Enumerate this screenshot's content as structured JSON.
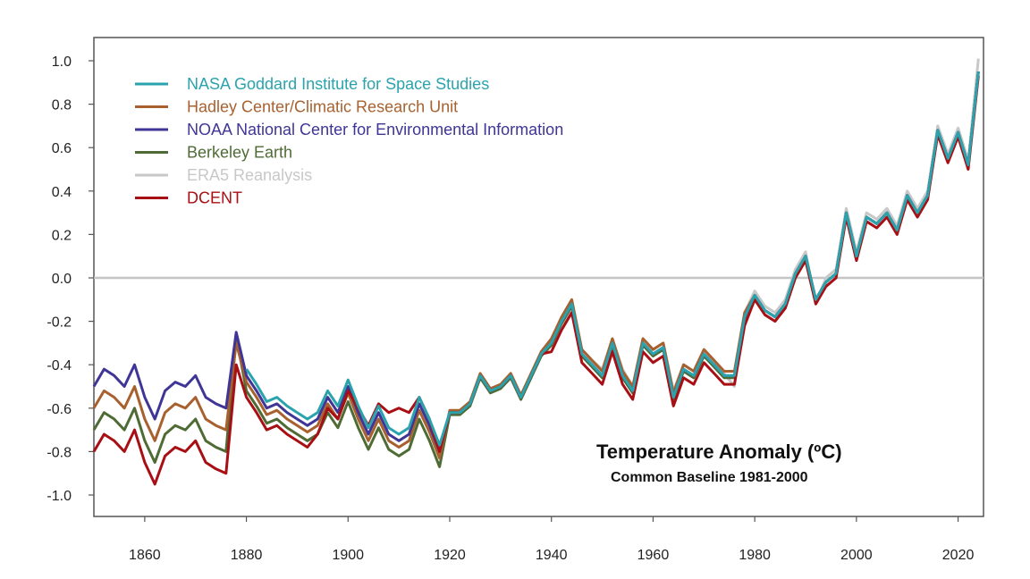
{
  "chart_data": {
    "type": "line",
    "title": "Temperature Anomaly (ºC)",
    "subtitle": "Common Baseline 1981-2000",
    "xlabel": "",
    "ylabel": "",
    "xlim": [
      1850,
      2025
    ],
    "ylim": [
      -1.1,
      1.1
    ],
    "x_ticks": [
      1860,
      1880,
      1900,
      1920,
      1940,
      1960,
      1980,
      2000,
      2020
    ],
    "y_ticks": [
      1.0,
      0.8,
      0.6,
      0.4,
      0.2,
      0.0,
      -0.2,
      -0.4,
      -0.6,
      -0.8,
      -1.0
    ],
    "y_tick_labels": [
      "1.0",
      "0.8",
      "0.6",
      "0.4",
      "0.2",
      "0.0",
      "-0.2",
      "-0.4",
      "-0.6",
      "-0.8",
      "-1.0"
    ],
    "zero_line": true,
    "grid": false,
    "legend_position": "top-left",
    "x": [
      1850,
      1852,
      1854,
      1856,
      1858,
      1860,
      1862,
      1864,
      1866,
      1868,
      1870,
      1872,
      1874,
      1876,
      1878,
      1880,
      1882,
      1884,
      1886,
      1888,
      1890,
      1892,
      1894,
      1896,
      1898,
      1900,
      1902,
      1904,
      1906,
      1908,
      1910,
      1912,
      1914,
      1916,
      1918,
      1920,
      1922,
      1924,
      1926,
      1928,
      1930,
      1932,
      1934,
      1936,
      1938,
      1940,
      1942,
      1944,
      1946,
      1948,
      1950,
      1952,
      1954,
      1956,
      1958,
      1960,
      1962,
      1964,
      1966,
      1968,
      1970,
      1972,
      1974,
      1976,
      1978,
      1980,
      1982,
      1984,
      1986,
      1988,
      1990,
      1992,
      1994,
      1996,
      1998,
      2000,
      2002,
      2004,
      2006,
      2008,
      2010,
      2012,
      2014,
      2016,
      2018,
      2020,
      2022,
      2024
    ],
    "series": [
      {
        "name": "ERA5 Reanalysis",
        "color": "#c8c8c8",
        "values": [
          null,
          null,
          null,
          null,
          null,
          null,
          null,
          null,
          null,
          null,
          null,
          null,
          null,
          null,
          null,
          null,
          null,
          null,
          null,
          null,
          null,
          null,
          null,
          null,
          null,
          null,
          null,
          null,
          null,
          null,
          null,
          null,
          null,
          null,
          null,
          null,
          null,
          null,
          null,
          null,
          null,
          null,
          null,
          null,
          null,
          -0.32,
          -0.24,
          -0.14,
          -0.33,
          -0.38,
          -0.42,
          -0.28,
          -0.42,
          -0.5,
          -0.28,
          -0.33,
          -0.3,
          -0.52,
          -0.4,
          -0.43,
          -0.33,
          -0.38,
          -0.44,
          -0.5,
          -0.16,
          -0.06,
          -0.13,
          -0.16,
          -0.1,
          0.04,
          0.12,
          -0.12,
          0.0,
          0.04,
          0.32,
          0.12,
          0.3,
          0.27,
          0.32,
          0.24,
          0.4,
          0.32,
          0.4,
          0.7,
          0.57,
          0.69,
          0.54,
          1.01
        ]
      },
      {
        "name": "Berkeley Earth",
        "color": "#4f6b35",
        "values": [
          -0.7,
          -0.62,
          -0.65,
          -0.7,
          -0.6,
          -0.75,
          -0.85,
          -0.72,
          -0.68,
          -0.7,
          -0.65,
          -0.75,
          -0.78,
          -0.8,
          -0.27,
          -0.52,
          -0.59,
          -0.67,
          -0.65,
          -0.69,
          -0.72,
          -0.75,
          -0.72,
          -0.62,
          -0.69,
          -0.57,
          -0.69,
          -0.79,
          -0.69,
          -0.79,
          -0.82,
          -0.79,
          -0.65,
          -0.75,
          -0.87,
          -0.63,
          -0.63,
          -0.59,
          -0.46,
          -0.53,
          -0.51,
          -0.46,
          -0.56,
          -0.46,
          -0.36,
          -0.31,
          -0.21,
          -0.13,
          -0.36,
          -0.41,
          -0.46,
          -0.31,
          -0.46,
          -0.53,
          -0.31,
          -0.36,
          -0.33,
          -0.56,
          -0.43,
          -0.46,
          -0.36,
          -0.41,
          -0.46,
          -0.46,
          -0.19,
          -0.08,
          -0.15,
          -0.18,
          -0.12,
          0.02,
          0.1,
          -0.1,
          -0.02,
          0.02,
          0.3,
          0.1,
          0.28,
          0.25,
          0.3,
          0.22,
          0.38,
          0.3,
          0.38,
          0.68,
          0.55,
          0.67,
          0.52,
          0.95
        ]
      },
      {
        "name": "Hadley Center/Climatic Research Unit",
        "color": "#a8612e",
        "values": [
          -0.6,
          -0.52,
          -0.55,
          -0.6,
          -0.5,
          -0.65,
          -0.75,
          -0.62,
          -0.58,
          -0.6,
          -0.55,
          -0.65,
          -0.68,
          -0.7,
          -0.3,
          -0.48,
          -0.55,
          -0.63,
          -0.61,
          -0.65,
          -0.68,
          -0.71,
          -0.68,
          -0.58,
          -0.65,
          -0.53,
          -0.65,
          -0.75,
          -0.65,
          -0.75,
          -0.78,
          -0.75,
          -0.61,
          -0.71,
          -0.83,
          -0.61,
          -0.61,
          -0.57,
          -0.44,
          -0.51,
          -0.49,
          -0.44,
          -0.54,
          -0.44,
          -0.34,
          -0.28,
          -0.18,
          -0.1,
          -0.33,
          -0.38,
          -0.43,
          -0.28,
          -0.43,
          -0.5,
          -0.28,
          -0.33,
          -0.3,
          -0.53,
          -0.4,
          -0.43,
          -0.33,
          -0.38,
          -0.43,
          -0.43,
          -0.16,
          -0.08,
          -0.15,
          -0.18,
          -0.12,
          0.02,
          0.1,
          -0.1,
          -0.02,
          0.02,
          0.3,
          0.1,
          0.28,
          0.25,
          0.3,
          0.22,
          0.38,
          0.3,
          0.38,
          0.68,
          0.55,
          0.67,
          0.52,
          0.95
        ]
      },
      {
        "name": "NOAA National Center for Environmental Information",
        "color": "#3f3596",
        "values": [
          -0.5,
          -0.42,
          -0.45,
          -0.5,
          -0.4,
          -0.55,
          -0.65,
          -0.52,
          -0.48,
          -0.5,
          -0.45,
          -0.55,
          -0.58,
          -0.6,
          -0.25,
          -0.45,
          -0.52,
          -0.6,
          -0.58,
          -0.62,
          -0.65,
          -0.68,
          -0.65,
          -0.55,
          -0.62,
          -0.5,
          -0.62,
          -0.72,
          -0.62,
          -0.72,
          -0.75,
          -0.72,
          -0.58,
          -0.68,
          -0.8,
          -0.62,
          -0.62,
          -0.58,
          -0.45,
          -0.52,
          -0.5,
          -0.45,
          -0.55,
          -0.45,
          -0.35,
          -0.3,
          -0.2,
          -0.12,
          -0.35,
          -0.4,
          -0.45,
          -0.3,
          -0.45,
          -0.52,
          -0.3,
          -0.35,
          -0.32,
          -0.55,
          -0.42,
          -0.45,
          -0.35,
          -0.4,
          -0.45,
          -0.45,
          -0.18,
          -0.08,
          -0.15,
          -0.18,
          -0.12,
          0.02,
          0.1,
          -0.1,
          -0.02,
          0.02,
          0.3,
          0.1,
          0.28,
          0.25,
          0.3,
          0.22,
          0.38,
          0.3,
          0.38,
          0.68,
          0.55,
          0.67,
          0.52,
          0.95
        ]
      },
      {
        "name": "DCENT",
        "color": "#a80f14",
        "values": [
          -0.8,
          -0.72,
          -0.75,
          -0.8,
          -0.7,
          -0.85,
          -0.95,
          -0.82,
          -0.78,
          -0.8,
          -0.75,
          -0.85,
          -0.88,
          -0.9,
          -0.4,
          -0.55,
          -0.62,
          -0.7,
          -0.68,
          -0.72,
          -0.75,
          -0.78,
          -0.72,
          -0.6,
          -0.65,
          -0.52,
          -0.6,
          -0.68,
          -0.58,
          -0.62,
          -0.6,
          -0.62,
          -0.55,
          -0.65,
          -0.8,
          -0.62,
          -0.62,
          -0.58,
          -0.45,
          -0.52,
          -0.5,
          -0.45,
          -0.55,
          -0.45,
          -0.35,
          -0.34,
          -0.24,
          -0.16,
          -0.39,
          -0.44,
          -0.49,
          -0.34,
          -0.49,
          -0.56,
          -0.34,
          -0.39,
          -0.36,
          -0.59,
          -0.46,
          -0.49,
          -0.39,
          -0.44,
          -0.49,
          -0.49,
          -0.22,
          -0.1,
          -0.17,
          -0.2,
          -0.14,
          0.0,
          0.08,
          -0.12,
          -0.04,
          0.0,
          0.28,
          0.08,
          0.26,
          0.23,
          0.28,
          0.2,
          0.36,
          0.28,
          0.36,
          0.66,
          0.53,
          0.65,
          0.5,
          0.93
        ]
      },
      {
        "name": "NASA Goddard Institute for Space Studies",
        "color": "#2aa3ad",
        "values": [
          null,
          null,
          null,
          null,
          null,
          null,
          null,
          null,
          null,
          null,
          null,
          null,
          null,
          null,
          null,
          -0.42,
          -0.49,
          -0.57,
          -0.55,
          -0.59,
          -0.62,
          -0.65,
          -0.62,
          -0.52,
          -0.59,
          -0.47,
          -0.59,
          -0.69,
          -0.59,
          -0.69,
          -0.72,
          -0.69,
          -0.55,
          -0.65,
          -0.77,
          -0.62,
          -0.62,
          -0.58,
          -0.45,
          -0.52,
          -0.5,
          -0.45,
          -0.55,
          -0.45,
          -0.35,
          -0.3,
          -0.2,
          -0.12,
          -0.35,
          -0.4,
          -0.45,
          -0.3,
          -0.45,
          -0.52,
          -0.3,
          -0.35,
          -0.32,
          -0.55,
          -0.42,
          -0.45,
          -0.35,
          -0.4,
          -0.45,
          -0.45,
          -0.18,
          -0.08,
          -0.15,
          -0.18,
          -0.12,
          0.02,
          0.1,
          -0.1,
          -0.02,
          0.02,
          0.3,
          0.1,
          0.28,
          0.25,
          0.3,
          0.22,
          0.38,
          0.3,
          0.38,
          0.68,
          0.55,
          0.67,
          0.52,
          0.95
        ]
      }
    ],
    "legend_order": [
      "NASA Goddard Institute for Space Studies",
      "Hadley Center/Climatic Research Unit",
      "NOAA National Center for Environmental Information",
      "Berkeley Earth",
      "ERA5 Reanalysis",
      "DCENT"
    ]
  }
}
